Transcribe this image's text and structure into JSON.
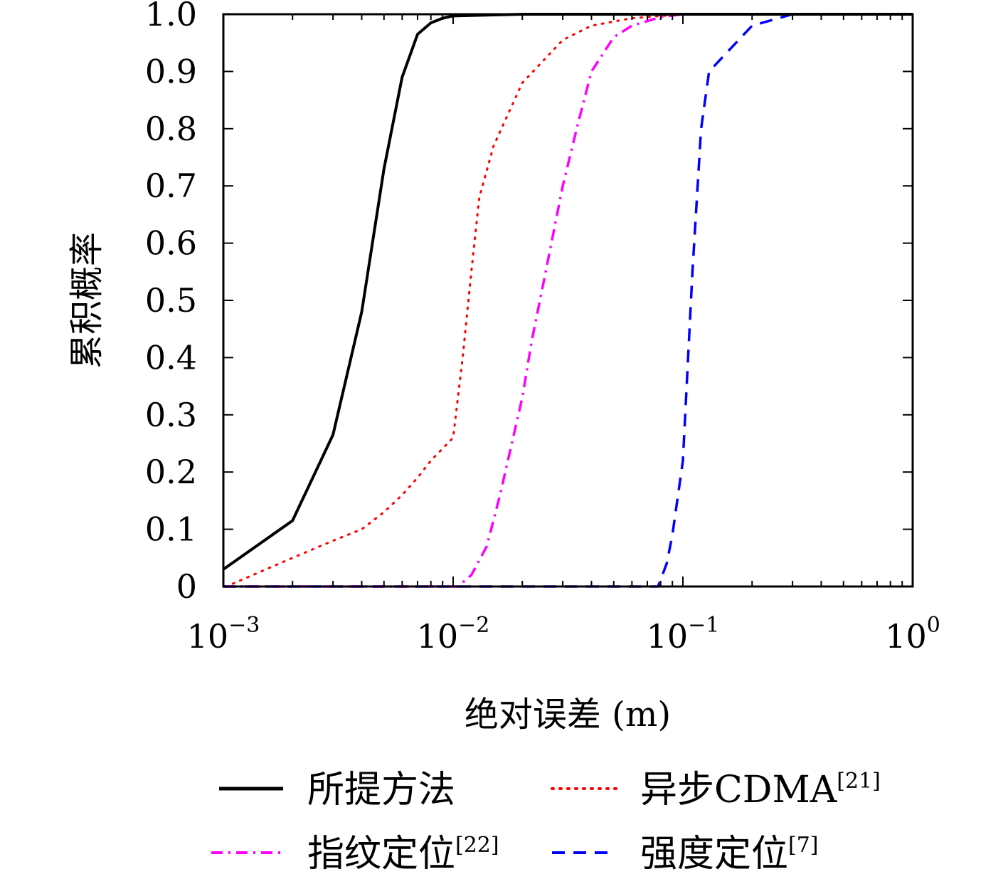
{
  "chart_data": {
    "type": "line",
    "xlabel": "绝对误差 (m)",
    "ylabel": "累积概率",
    "xscale": "log",
    "xlim": [
      0.001,
      1
    ],
    "ylim": [
      0,
      1
    ],
    "grid": false,
    "legend_position": "bottom",
    "x_ticks": [
      {
        "value": 0.001,
        "base": "10",
        "exp": "−3"
      },
      {
        "value": 0.01,
        "base": "10",
        "exp": "−2"
      },
      {
        "value": 0.1,
        "base": "10",
        "exp": "−1"
      },
      {
        "value": 1,
        "base": "10",
        "exp": "0"
      }
    ],
    "y_ticks": [
      {
        "value": 0,
        "label": "0"
      },
      {
        "value": 0.1,
        "label": "0.1"
      },
      {
        "value": 0.2,
        "label": "0.2"
      },
      {
        "value": 0.3,
        "label": "0.3"
      },
      {
        "value": 0.4,
        "label": "0.4"
      },
      {
        "value": 0.5,
        "label": "0.5"
      },
      {
        "value": 0.6,
        "label": "0.6"
      },
      {
        "value": 0.7,
        "label": "0.7"
      },
      {
        "value": 0.8,
        "label": "0.8"
      },
      {
        "value": 0.9,
        "label": "0.9"
      },
      {
        "value": 1.0,
        "label": "1.0"
      }
    ],
    "series": [
      {
        "name": "所提方法",
        "ref": "",
        "color": "#000000",
        "style": "solid",
        "points": [
          [
            0.001,
            0.03
          ],
          [
            0.002,
            0.115
          ],
          [
            0.003,
            0.265
          ],
          [
            0.004,
            0.48
          ],
          [
            0.005,
            0.73
          ],
          [
            0.006,
            0.89
          ],
          [
            0.007,
            0.965
          ],
          [
            0.008,
            0.985
          ],
          [
            0.009,
            0.993
          ],
          [
            0.01,
            0.997
          ],
          [
            0.02,
            1.0
          ],
          [
            1,
            1.0
          ]
        ]
      },
      {
        "name": "异步CDMA",
        "ref": "[21]",
        "color": "#ff0000",
        "style": "dotted",
        "points": [
          [
            0.0011,
            0.005
          ],
          [
            0.002,
            0.05
          ],
          [
            0.003,
            0.08
          ],
          [
            0.004,
            0.1
          ],
          [
            0.005,
            0.13
          ],
          [
            0.006,
            0.16
          ],
          [
            0.007,
            0.19
          ],
          [
            0.008,
            0.22
          ],
          [
            0.01,
            0.26
          ],
          [
            0.011,
            0.4
          ],
          [
            0.012,
            0.55
          ],
          [
            0.013,
            0.68
          ],
          [
            0.015,
            0.77
          ],
          [
            0.02,
            0.88
          ],
          [
            0.03,
            0.955
          ],
          [
            0.04,
            0.98
          ],
          [
            0.06,
            0.993
          ],
          [
            0.1,
            1.0
          ],
          [
            1,
            1.0
          ]
        ]
      },
      {
        "name": "指纹定位",
        "ref": "[22]",
        "color": "#ff00ff",
        "style": "dashdot",
        "points": [
          [
            0.001,
            0
          ],
          [
            0.0105,
            0
          ],
          [
            0.012,
            0.02
          ],
          [
            0.014,
            0.07
          ],
          [
            0.016,
            0.16
          ],
          [
            0.018,
            0.25
          ],
          [
            0.02,
            0.33
          ],
          [
            0.022,
            0.43
          ],
          [
            0.025,
            0.54
          ],
          [
            0.03,
            0.7
          ],
          [
            0.035,
            0.81
          ],
          [
            0.04,
            0.9
          ],
          [
            0.05,
            0.96
          ],
          [
            0.06,
            0.98
          ],
          [
            0.08,
            0.995
          ],
          [
            0.1,
            1.0
          ],
          [
            1,
            1.0
          ]
        ]
      },
      {
        "name": "强度定位",
        "ref": "[7]",
        "color": "#0000ff",
        "style": "dashed",
        "points": [
          [
            0.001,
            0
          ],
          [
            0.078,
            0
          ],
          [
            0.085,
            0.04
          ],
          [
            0.09,
            0.09
          ],
          [
            0.1,
            0.22
          ],
          [
            0.11,
            0.55
          ],
          [
            0.12,
            0.8
          ],
          [
            0.13,
            0.9
          ],
          [
            0.2,
            0.98
          ],
          [
            0.3,
            1.0
          ],
          [
            1,
            1.0
          ]
        ]
      }
    ]
  }
}
